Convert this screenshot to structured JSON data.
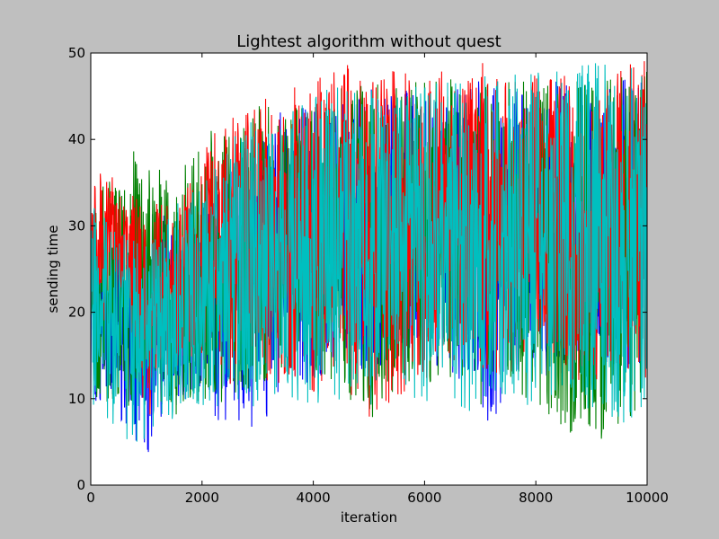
{
  "chart_data": {
    "type": "line",
    "title": "Lightest algorithm without quest",
    "xlabel": "iteration",
    "ylabel": "sending time",
    "xlim": [
      0,
      10000
    ],
    "ylim": [
      0,
      50
    ],
    "xticks": [
      0,
      2000,
      4000,
      6000,
      8000,
      10000
    ],
    "yticks": [
      0,
      10,
      20,
      30,
      40,
      50
    ],
    "xtick_labels": [
      "0",
      "2000",
      "4000",
      "6000",
      "8000",
      "10000"
    ],
    "ytick_labels": [
      "0",
      "10",
      "20",
      "30",
      "40",
      "50"
    ],
    "grid": false,
    "legend": "none",
    "series": [
      {
        "color": "#0000ff",
        "x": [
          0,
          500,
          800,
          1000,
          1200,
          1500,
          2000,
          2300,
          2600,
          2900,
          3200,
          3500,
          4000,
          4300,
          4500,
          5000,
          5500,
          6000,
          6500,
          7000,
          7200,
          7500,
          8000,
          8500,
          9000,
          9500,
          10000
        ],
        "low": [
          10,
          8,
          5,
          3,
          6,
          9,
          11,
          7,
          5,
          4,
          8,
          13,
          11,
          13,
          14,
          12,
          15,
          13,
          13,
          9,
          6,
          12,
          13,
          11,
          13,
          12,
          14
        ],
        "high": [
          32,
          30,
          31,
          29,
          34,
          31,
          32,
          34,
          38,
          40,
          43,
          44,
          44,
          45,
          44,
          46,
          46,
          45,
          46,
          47,
          46,
          46,
          46,
          47,
          47,
          47,
          47
        ]
      },
      {
        "color": "#008000",
        "x": [
          0,
          500,
          800,
          1000,
          1200,
          1500,
          2000,
          2300,
          2600,
          2900,
          3200,
          3500,
          4000,
          4300,
          4500,
          5000,
          5500,
          6000,
          6500,
          7000,
          7200,
          7500,
          8000,
          8500,
          9000,
          9500,
          10000
        ],
        "low": [
          10,
          8,
          9,
          9,
          9,
          8,
          10,
          9,
          10,
          11,
          12,
          12,
          10,
          11,
          10,
          6,
          10,
          11,
          10,
          9,
          12,
          11,
          9,
          6,
          5,
          6,
          8
        ],
        "high": [
          34,
          36,
          39,
          37,
          38,
          36,
          43,
          40,
          42,
          44,
          46,
          44,
          46,
          47,
          47,
          47,
          46,
          47,
          47,
          48,
          47,
          48,
          47,
          48,
          48,
          48,
          49
        ]
      },
      {
        "color": "#ff0000",
        "x": [
          0,
          500,
          800,
          1000,
          1200,
          1500,
          2000,
          2300,
          2600,
          2900,
          3200,
          3500,
          4000,
          4300,
          4500,
          5000,
          5500,
          6000,
          6500,
          7000,
          7200,
          7500,
          8000,
          8500,
          9000,
          9500,
          10000
        ],
        "low": [
          18,
          20,
          15,
          6,
          12,
          13,
          14,
          12,
          11,
          13,
          10,
          13,
          9,
          10,
          11,
          6,
          10,
          12,
          13,
          11,
          12,
          10,
          14,
          12,
          11,
          14,
          12
        ],
        "high": [
          38,
          35,
          34,
          30,
          33,
          32,
          38,
          42,
          43,
          44,
          45,
          46,
          47,
          48,
          49,
          48,
          49,
          48,
          48,
          49,
          50,
          47,
          48,
          48,
          48,
          48,
          50
        ]
      },
      {
        "color": "#00bfbf",
        "x": [
          0,
          500,
          800,
          1000,
          1200,
          1500,
          2000,
          2300,
          2600,
          2900,
          3200,
          3500,
          4000,
          4300,
          4500,
          5000,
          5500,
          6000,
          6500,
          7000,
          7200,
          7500,
          8000,
          8500,
          9000,
          9500,
          10000
        ],
        "low": [
          8,
          6,
          4,
          5,
          7,
          7,
          8,
          9,
          9,
          9,
          9,
          10,
          9,
          9,
          10,
          9,
          10,
          9,
          9,
          8,
          9,
          9,
          9,
          9,
          8,
          7,
          8
        ],
        "high": [
          33,
          29,
          30,
          28,
          30,
          33,
          36,
          38,
          41,
          43,
          44,
          44,
          45,
          46,
          46,
          46,
          47,
          47,
          47,
          48,
          48,
          48,
          48,
          49,
          49,
          49,
          49
        ]
      }
    ]
  }
}
